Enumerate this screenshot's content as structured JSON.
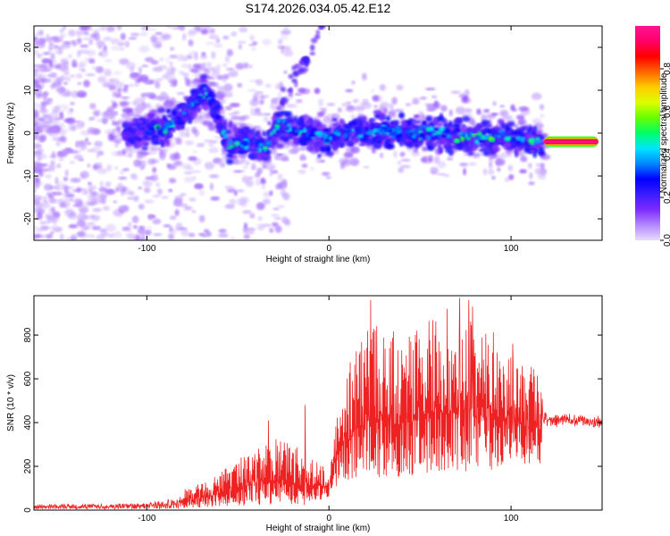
{
  "title": "S174.2026.034.05.42.E12",
  "chart_data": [
    {
      "type": "heatmap",
      "name": "spectrogram",
      "xlabel": "Height of straight line (km)",
      "ylabel": "Frequency (Hz)",
      "xlim": [
        -162,
        150
      ],
      "ylim": [
        -25,
        25
      ],
      "xticks": [
        -100,
        0,
        100
      ],
      "yticks": [
        -20,
        -10,
        0,
        10,
        20
      ],
      "colorbar": {
        "label": "Normalized spectral amplitude",
        "range": [
          0,
          1
        ],
        "ticks": [
          "0.0",
          "0.2",
          "0.4",
          "0.6",
          "0.8"
        ],
        "tick_values": [
          0.0,
          0.2,
          0.4,
          0.6,
          0.8
        ],
        "colors": [
          "#e8dcfa",
          "#b388ff",
          "#7c2cff",
          "#3b1cff",
          "#0000ff",
          "#0088ff",
          "#00e5ff",
          "#00ff66",
          "#66ff00",
          "#ddff00",
          "#ffcc00",
          "#ff6600",
          "#ff0000",
          "#ff0066",
          "#ff1493"
        ]
      },
      "ridge": [
        {
          "x": -110,
          "f": 0
        },
        {
          "x": -90,
          "f": 1
        },
        {
          "x": -78,
          "f": 5
        },
        {
          "x": -68,
          "f": 10
        },
        {
          "x": -62,
          "f": 5
        },
        {
          "x": -55,
          "f": -3
        },
        {
          "x": -45,
          "f": -2
        },
        {
          "x": -35,
          "f": -4
        },
        {
          "x": -28,
          "f": 2
        },
        {
          "x": -15,
          "f": 0
        },
        {
          "x": 0,
          "f": -1
        },
        {
          "x": 20,
          "f": 1
        },
        {
          "x": 40,
          "f": 0
        },
        {
          "x": 60,
          "f": 0
        },
        {
          "x": 80,
          "f": -1
        },
        {
          "x": 100,
          "f": -1
        },
        {
          "x": 115,
          "f": -2
        }
      ],
      "streak": {
        "x0": -32,
        "x1": -3,
        "f0": 2,
        "f1": 25
      },
      "tone": {
        "x_start": 118,
        "x_end": 148,
        "f": -2,
        "amplitude": 0.98
      }
    },
    {
      "type": "line",
      "name": "snr",
      "xlabel": "Height of straight line (km)",
      "ylabel": "SNR (10 * v/v)",
      "xlim": [
        -162,
        150
      ],
      "ylim": [
        0,
        980
      ],
      "xticks": [
        -100,
        0,
        100
      ],
      "yticks": [
        0,
        200,
        400,
        600,
        800
      ],
      "color": "#ee2222",
      "envelope": [
        {
          "x": -162,
          "lo": 5,
          "hi": 35
        },
        {
          "x": -110,
          "lo": 5,
          "hi": 40
        },
        {
          "x": -90,
          "lo": 5,
          "hi": 60
        },
        {
          "x": -75,
          "lo": 10,
          "hi": 110
        },
        {
          "x": -55,
          "lo": 20,
          "hi": 200
        },
        {
          "x": -40,
          "lo": 20,
          "hi": 300
        },
        {
          "x": -28,
          "lo": 30,
          "hi": 330
        },
        {
          "x": -15,
          "lo": 20,
          "hi": 280
        },
        {
          "x": -5,
          "lo": 40,
          "hi": 220
        },
        {
          "x": 0,
          "lo": 60,
          "hi": 180
        },
        {
          "x": 5,
          "lo": 120,
          "hi": 550
        },
        {
          "x": 20,
          "lo": 150,
          "hi": 850
        },
        {
          "x": 40,
          "lo": 150,
          "hi": 820
        },
        {
          "x": 60,
          "lo": 180,
          "hi": 880
        },
        {
          "x": 80,
          "lo": 170,
          "hi": 900
        },
        {
          "x": 100,
          "lo": 200,
          "hi": 760
        },
        {
          "x": 117,
          "lo": 200,
          "hi": 620
        },
        {
          "x": 118,
          "lo": 380,
          "hi": 460
        },
        {
          "x": 150,
          "lo": 360,
          "hi": 440
        }
      ],
      "spikes": [
        {
          "x": 23,
          "y": 960
        },
        {
          "x": 72,
          "y": 970
        },
        {
          "x": 77,
          "y": 960
        },
        {
          "x": 79,
          "y": 930
        },
        {
          "x": 65,
          "y": 920
        },
        {
          "x": 38,
          "y": 730
        },
        {
          "x": 101,
          "y": 760
        },
        {
          "x": -48,
          "y": 240
        },
        {
          "x": -33,
          "y": 410
        },
        {
          "x": -13,
          "y": 480
        }
      ]
    }
  ]
}
